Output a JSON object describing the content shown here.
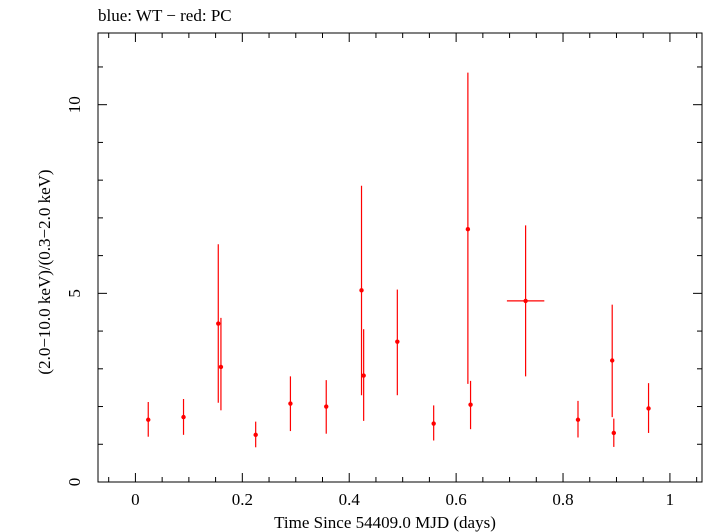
{
  "chart_data": {
    "type": "scatter",
    "title": "blue: WT − red: PC",
    "xlabel": "Time Since 54409.0 MJD (days)",
    "ylabel": "(2.0−10.0 keV)/(0.3−2.0 keV)",
    "xlim": [
      -0.07,
      1.06
    ],
    "ylim": [
      0,
      11.9
    ],
    "x_ticks": [
      0,
      0.2,
      0.4,
      0.6,
      0.8,
      1
    ],
    "x_tick_labels": [
      "0",
      "0.2",
      "0.4",
      "0.6",
      "0.8",
      "1"
    ],
    "y_ticks": [
      0,
      5,
      10
    ],
    "y_tick_labels": [
      "0",
      "5",
      "10"
    ],
    "grid": false,
    "series": [
      {
        "color": "#ff0000",
        "points": [
          {
            "x": 0.024,
            "y": 1.65,
            "ylo": 1.2,
            "yhi": 2.12,
            "xerr": 0
          },
          {
            "x": 0.09,
            "y": 1.72,
            "ylo": 1.25,
            "yhi": 2.2,
            "xerr": 0
          },
          {
            "x": 0.155,
            "y": 4.2,
            "ylo": 2.1,
            "yhi": 6.3,
            "xerr": 0
          },
          {
            "x": 0.16,
            "y": 3.05,
            "ylo": 1.9,
            "yhi": 4.35,
            "xerr": 0
          },
          {
            "x": 0.225,
            "y": 1.25,
            "ylo": 0.92,
            "yhi": 1.6,
            "xerr": 0
          },
          {
            "x": 0.29,
            "y": 2.08,
            "ylo": 1.35,
            "yhi": 2.8,
            "xerr": 0
          },
          {
            "x": 0.357,
            "y": 2.0,
            "ylo": 1.28,
            "yhi": 2.7,
            "xerr": 0
          },
          {
            "x": 0.423,
            "y": 5.08,
            "ylo": 2.3,
            "yhi": 7.85,
            "xerr": 0
          },
          {
            "x": 0.427,
            "y": 2.82,
            "ylo": 1.62,
            "yhi": 4.05,
            "xerr": 0
          },
          {
            "x": 0.49,
            "y": 3.72,
            "ylo": 2.3,
            "yhi": 5.1,
            "xerr": 0
          },
          {
            "x": 0.558,
            "y": 1.55,
            "ylo": 1.1,
            "yhi": 2.03,
            "xerr": 0
          },
          {
            "x": 0.622,
            "y": 6.7,
            "ylo": 2.6,
            "yhi": 10.85,
            "xerr": 0
          },
          {
            "x": 0.627,
            "y": 2.05,
            "ylo": 1.4,
            "yhi": 2.68,
            "xerr": 0
          },
          {
            "x": 0.73,
            "y": 4.8,
            "ylo": 2.8,
            "yhi": 6.8,
            "xerr": 0.035
          },
          {
            "x": 0.828,
            "y": 1.65,
            "ylo": 1.18,
            "yhi": 2.15,
            "xerr": 0
          },
          {
            "x": 0.892,
            "y": 3.22,
            "ylo": 1.72,
            "yhi": 4.7,
            "xerr": 0
          },
          {
            "x": 0.895,
            "y": 1.3,
            "ylo": 0.93,
            "yhi": 1.68,
            "xerr": 0
          },
          {
            "x": 0.96,
            "y": 1.95,
            "ylo": 1.3,
            "yhi": 2.62,
            "xerr": 0
          }
        ]
      }
    ]
  }
}
